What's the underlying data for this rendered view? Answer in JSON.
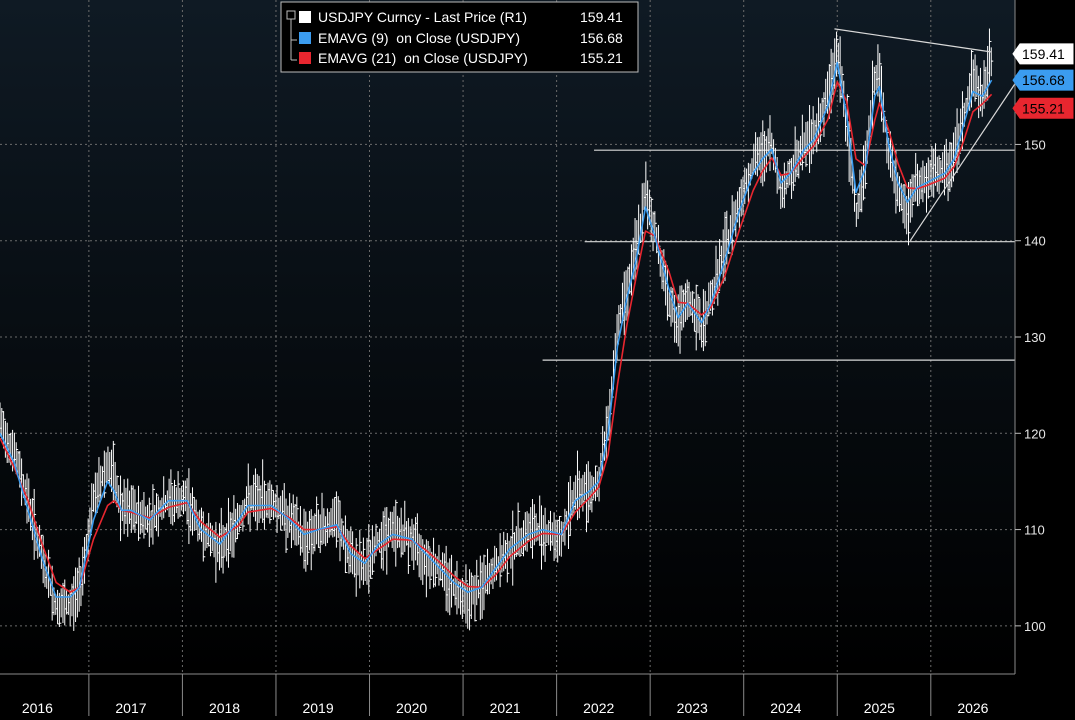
{
  "colors": {
    "background_top": "#101820",
    "background_bottom": "#000000",
    "price": "#ffffff",
    "ema9": "#3b9cf0",
    "ema21": "#e8262f",
    "grid": "#6b6b6b",
    "annotation": "#d9d9d9"
  },
  "chart_data": {
    "type": "line",
    "title": "",
    "axis_side": "right",
    "ylim": [
      95,
      165
    ],
    "yticks": [
      100,
      110,
      120,
      130,
      140,
      150
    ],
    "xlim": [
      2015.6,
      2026.45
    ],
    "x_year_labels": [
      "2016",
      "2017",
      "2018",
      "2019",
      "2020",
      "2021",
      "2022",
      "2023",
      "2024",
      "2025",
      "2026"
    ],
    "x_year_centers": [
      2016.0,
      2017.0,
      2018.0,
      2019.0,
      2020.0,
      2021.0,
      2022.0,
      2023.0,
      2024.0,
      2025.0,
      2026.0
    ],
    "x_year_boundaries": [
      2016.55,
      2017.55,
      2018.55,
      2019.55,
      2020.55,
      2021.55,
      2022.55,
      2023.55,
      2024.55,
      2025.55
    ],
    "series": [
      {
        "name": "USDJPY Curncy - Last Price (R1)",
        "last": "159.41",
        "style": "weekly-bars",
        "x": [
          2015.6,
          2015.75,
          2015.9,
          2016.05,
          2016.2,
          2016.35,
          2016.45,
          2016.6,
          2016.75,
          2016.82,
          2016.9,
          2017.0,
          2017.2,
          2017.4,
          2017.6,
          2017.75,
          2017.95,
          2018.15,
          2018.25,
          2018.5,
          2018.7,
          2018.85,
          2019.0,
          2019.2,
          2019.35,
          2019.5,
          2019.65,
          2019.8,
          2020.0,
          2020.15,
          2020.3,
          2020.45,
          2020.6,
          2020.75,
          2020.9,
          2021.05,
          2021.25,
          2021.4,
          2021.6,
          2021.75,
          2021.9,
          2022.0,
          2022.1,
          2022.2,
          2022.3,
          2022.4,
          2022.5,
          2022.6,
          2022.75,
          2022.85,
          2022.95,
          2023.1,
          2023.2,
          2023.35,
          2023.5,
          2023.65,
          2023.75,
          2023.85,
          2023.95,
          2024.05,
          2024.2,
          2024.3,
          2024.45,
          2024.55,
          2024.65,
          2024.75,
          2024.85,
          2024.95,
          2025.0,
          2025.1,
          2025.2,
          2025.3,
          2025.4,
          2025.5,
          2025.6,
          2025.7,
          2025.8,
          2025.9,
          2026.0,
          2026.1,
          2026.2
        ],
        "values": [
          121,
          118,
          113,
          107,
          102,
          102,
          104,
          113,
          117,
          115,
          112,
          112,
          111,
          113,
          113,
          110,
          108,
          111,
          113,
          113,
          111,
          109,
          110,
          111,
          107,
          106,
          109,
          110,
          109,
          107,
          106,
          104,
          103,
          104,
          106,
          108,
          110,
          110,
          109,
          114,
          114,
          115,
          121,
          131,
          135,
          139,
          145,
          141,
          134,
          131,
          134,
          131,
          134,
          139,
          144,
          148,
          149,
          150,
          145,
          147,
          150,
          151,
          155,
          160,
          152,
          143,
          148,
          157,
          157,
          149,
          145,
          143,
          146,
          146,
          147,
          147,
          149,
          153,
          157,
          155,
          159
        ]
      },
      {
        "name": "EMAVG (9)  on Close (USDJPY)",
        "last": "156.68",
        "x": [
          2015.6,
          2015.75,
          2015.9,
          2016.05,
          2016.2,
          2016.35,
          2016.45,
          2016.6,
          2016.75,
          2016.82,
          2016.9,
          2017.0,
          2017.2,
          2017.4,
          2017.6,
          2017.75,
          2017.95,
          2018.15,
          2018.25,
          2018.5,
          2018.7,
          2018.85,
          2019.0,
          2019.2,
          2019.35,
          2019.5,
          2019.65,
          2019.8,
          2020.0,
          2020.15,
          2020.3,
          2020.45,
          2020.6,
          2020.75,
          2020.9,
          2021.05,
          2021.25,
          2021.4,
          2021.6,
          2021.75,
          2021.9,
          2022.0,
          2022.1,
          2022.2,
          2022.3,
          2022.4,
          2022.5,
          2022.6,
          2022.75,
          2022.85,
          2022.95,
          2023.1,
          2023.2,
          2023.35,
          2023.5,
          2023.65,
          2023.75,
          2023.85,
          2023.95,
          2024.05,
          2024.2,
          2024.3,
          2024.45,
          2024.55,
          2024.65,
          2024.75,
          2024.85,
          2024.95,
          2025.0,
          2025.1,
          2025.2,
          2025.3,
          2025.4,
          2025.5,
          2025.6,
          2025.7,
          2025.8,
          2025.9,
          2026.0,
          2026.1,
          2026.2
        ],
        "values": [
          120,
          117,
          112,
          107,
          103,
          103,
          104,
          111,
          115,
          114,
          112,
          112,
          111,
          113,
          113,
          110,
          108.5,
          111,
          112.5,
          112.5,
          111,
          109.5,
          110,
          110.5,
          107.5,
          106.5,
          108.5,
          109.5,
          109,
          107.5,
          106,
          104.5,
          103.5,
          104,
          106,
          108,
          109.5,
          110,
          109.5,
          113,
          114,
          115,
          120,
          129,
          134,
          138,
          143.5,
          140.5,
          135,
          132,
          133.5,
          131.5,
          133.5,
          138,
          143,
          147,
          148.5,
          149.5,
          146,
          147,
          149.5,
          150.5,
          154,
          158.5,
          153,
          145,
          147.5,
          155,
          156,
          150,
          146,
          144,
          145.5,
          146,
          146.5,
          147,
          148.5,
          152,
          155.5,
          155,
          156.68
        ]
      },
      {
        "name": "EMAVG (21)  on Close (USDJPY)",
        "last": "155.21",
        "x": [
          2015.6,
          2015.75,
          2015.9,
          2016.05,
          2016.2,
          2016.35,
          2016.45,
          2016.6,
          2016.75,
          2016.82,
          2016.9,
          2017.0,
          2017.2,
          2017.4,
          2017.6,
          2017.75,
          2017.95,
          2018.15,
          2018.25,
          2018.5,
          2018.7,
          2018.85,
          2019.0,
          2019.2,
          2019.35,
          2019.5,
          2019.65,
          2019.8,
          2020.0,
          2020.15,
          2020.3,
          2020.45,
          2020.6,
          2020.75,
          2020.9,
          2021.05,
          2021.25,
          2021.4,
          2021.6,
          2021.75,
          2021.9,
          2022.0,
          2022.1,
          2022.2,
          2022.3,
          2022.4,
          2022.5,
          2022.6,
          2022.75,
          2022.85,
          2022.95,
          2023.1,
          2023.2,
          2023.35,
          2023.5,
          2023.65,
          2023.75,
          2023.85,
          2023.95,
          2024.05,
          2024.2,
          2024.3,
          2024.45,
          2024.55,
          2024.65,
          2024.75,
          2024.85,
          2024.95,
          2025.0,
          2025.1,
          2025.2,
          2025.3,
          2025.4,
          2025.5,
          2025.6,
          2025.7,
          2025.8,
          2025.9,
          2026.0,
          2026.1,
          2026.2
        ],
        "values": [
          119.5,
          116.5,
          113,
          108.5,
          104.5,
          103.5,
          104,
          109,
          112.5,
          113,
          112,
          111.8,
          111.2,
          112.3,
          112.8,
          110.8,
          109.2,
          110.4,
          111.8,
          112.2,
          111.2,
          110,
          110,
          110.3,
          108.3,
          107,
          108,
          109,
          108.9,
          107.9,
          106.6,
          105.2,
          104.1,
          104,
          105.3,
          107.2,
          108.8,
          109.6,
          109.5,
          111.8,
          113.3,
          114.4,
          117.8,
          125,
          131.2,
          136.2,
          141,
          140.5,
          136.8,
          133.6,
          133.5,
          132.3,
          133.1,
          136.4,
          141,
          145.2,
          147.2,
          148.6,
          146.8,
          147,
          148.8,
          149.9,
          152.6,
          156.5,
          154.5,
          148.5,
          147.8,
          152.5,
          154.3,
          151.5,
          148,
          145.5,
          145.4,
          145.7,
          146.1,
          146.5,
          147.7,
          150.3,
          153.4,
          154.2,
          155.21
        ]
      }
    ],
    "support_levels": [
      {
        "value": 149.4,
        "x_start": 2021.95,
        "x_end": 2026.45
      },
      {
        "value": 139.9,
        "x_start": 2021.85,
        "x_end": 2026.45
      },
      {
        "value": 127.6,
        "x_start": 2021.4,
        "x_end": 2026.45
      }
    ],
    "trendlines": [
      {
        "x": [
          2024.52,
          2026.2
        ],
        "y": [
          162.0,
          159.6
        ]
      },
      {
        "x": [
          2025.33,
          2026.45
        ],
        "y": [
          140.0,
          156.3
        ]
      }
    ]
  },
  "legend": {
    "items": [
      {
        "label": "USDJPY Curncy - Last Price (R1)",
        "value": "159.41"
      },
      {
        "label": "EMAVG (9)  on Close (USDJPY)",
        "value": "156.68"
      },
      {
        "label": "EMAVG (21)  on Close (USDJPY)",
        "value": "155.21"
      }
    ]
  },
  "axis_flags": [
    {
      "label": "159.41",
      "value": 159.41
    },
    {
      "label": "156.68",
      "value": 156.68
    },
    {
      "label": "155.21",
      "value": 155.21
    }
  ]
}
